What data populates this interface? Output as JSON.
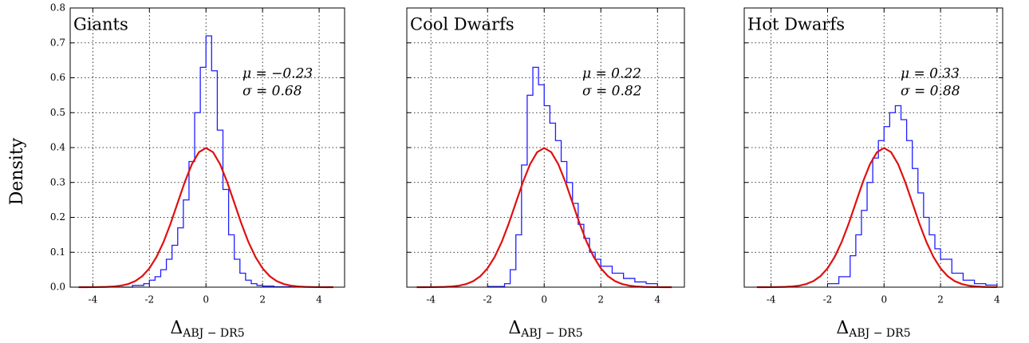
{
  "y_label": "Density",
  "chart_data": [
    {
      "type": "line",
      "title": "Giants",
      "annotations": [
        "μ = −0.23",
        "σ = 0.68"
      ],
      "x_label": {
        "symbol": "Δ",
        "subscript": "ABJ − DR5"
      },
      "xlim": [
        -4.8,
        4.9
      ],
      "xticks": [
        -4,
        -2,
        0,
        2,
        4
      ],
      "ylim": [
        0,
        0.8
      ],
      "yticks": [
        {
          "value": 0,
          "label": "0.0"
        },
        {
          "value": 0.1,
          "label": "0.1"
        },
        {
          "value": 0.2,
          "label": "0.2"
        },
        {
          "value": 0.3,
          "label": "0.3"
        },
        {
          "value": 0.4,
          "label": "0.4"
        },
        {
          "value": 0.5,
          "label": "0.5"
        },
        {
          "value": 0.6,
          "label": "0.6"
        },
        {
          "value": 0.7,
          "label": "0.7"
        },
        {
          "value": 0.8,
          "label": "0.8"
        }
      ],
      "show_ytick_labels": true,
      "grid": true,
      "series": [
        {
          "color": "#1f1fff",
          "step": true,
          "x": [
            -3,
            -2.6,
            -2.2,
            -2,
            -1.8,
            -1.6,
            -1.4,
            -1.2,
            -1,
            -0.8,
            -0.6,
            -0.4,
            -0.2,
            0,
            0.2,
            0.4,
            0.6,
            0.8,
            1,
            1.2,
            1.4,
            1.6,
            1.8,
            2,
            2.4,
            3
          ],
          "values": [
            0,
            0.005,
            0.01,
            0.02,
            0.03,
            0.05,
            0.08,
            0.12,
            0.17,
            0.25,
            0.36,
            0.5,
            0.63,
            0.72,
            0.62,
            0.45,
            0.28,
            0.15,
            0.08,
            0.04,
            0.02,
            0.01,
            0.005,
            0.003,
            0.001,
            0
          ]
        },
        {
          "color": "#e01010",
          "step": false,
          "x": [
            -4.5,
            -4.25,
            -4,
            -3.75,
            -3.5,
            -3.25,
            -3,
            -2.75,
            -2.5,
            -2.25,
            -2,
            -1.75,
            -1.5,
            -1.25,
            -1,
            -0.75,
            -0.5,
            -0.25,
            0,
            0.25,
            0.5,
            0.75,
            1,
            1.25,
            1.5,
            1.75,
            2,
            2.25,
            2.5,
            2.75,
            3,
            3.25,
            3.5,
            3.75,
            4,
            4.25,
            4.5
          ],
          "values": [
            2e-05,
            5e-05,
            0.0001,
            0.0004,
            0.0009,
            0.002,
            0.0044,
            0.0091,
            0.0175,
            0.0317,
            0.054,
            0.0863,
            0.1295,
            0.1826,
            0.242,
            0.3011,
            0.3521,
            0.3867,
            0.3989,
            0.3867,
            0.3521,
            0.3011,
            0.242,
            0.1826,
            0.1295,
            0.0863,
            0.054,
            0.0317,
            0.0175,
            0.0091,
            0.0044,
            0.002,
            0.0009,
            0.0004,
            0.0001,
            5e-05,
            2e-05
          ]
        }
      ]
    },
    {
      "type": "line",
      "title": "Cool Dwarfs",
      "annotations": [
        "μ = 0.22",
        "σ = 0.82"
      ],
      "x_label": {
        "symbol": "Δ",
        "subscript": "ABJ − DR5"
      },
      "xlim": [
        -4.85,
        4.95
      ],
      "xticks": [
        -4,
        -2,
        0,
        2,
        4
      ],
      "ylim": [
        0,
        0.8
      ],
      "yticks": [
        0,
        0.1,
        0.2,
        0.3,
        0.4,
        0.5,
        0.6,
        0.7,
        0.8
      ],
      "show_ytick_labels": false,
      "grid": true,
      "series": [
        {
          "color": "#1f1fff",
          "step": true,
          "x": [
            -2,
            -1.4,
            -1.2,
            -1,
            -0.8,
            -0.6,
            -0.4,
            -0.2,
            0,
            0.2,
            0.4,
            0.6,
            0.8,
            1,
            1.2,
            1.4,
            1.6,
            1.8,
            2,
            2.4,
            2.8,
            3.2,
            3.6,
            4
          ],
          "values": [
            0.002,
            0.01,
            0.05,
            0.15,
            0.35,
            0.55,
            0.63,
            0.58,
            0.52,
            0.47,
            0.42,
            0.36,
            0.3,
            0.24,
            0.18,
            0.14,
            0.1,
            0.08,
            0.06,
            0.04,
            0.025,
            0.015,
            0.01,
            0.008
          ]
        },
        {
          "color": "#e01010",
          "step": false,
          "x": [
            -4.5,
            -4.25,
            -4,
            -3.75,
            -3.5,
            -3.25,
            -3,
            -2.75,
            -2.5,
            -2.25,
            -2,
            -1.75,
            -1.5,
            -1.25,
            -1,
            -0.75,
            -0.5,
            -0.25,
            0,
            0.25,
            0.5,
            0.75,
            1,
            1.25,
            1.5,
            1.75,
            2,
            2.25,
            2.5,
            2.75,
            3,
            3.25,
            3.5,
            3.75,
            4,
            4.25,
            4.5
          ],
          "values": [
            2e-05,
            5e-05,
            0.0001,
            0.0004,
            0.0009,
            0.002,
            0.0044,
            0.0091,
            0.0175,
            0.0317,
            0.054,
            0.0863,
            0.1295,
            0.1826,
            0.242,
            0.3011,
            0.3521,
            0.3867,
            0.3989,
            0.3867,
            0.3521,
            0.3011,
            0.242,
            0.1826,
            0.1295,
            0.0863,
            0.054,
            0.0317,
            0.0175,
            0.0091,
            0.0044,
            0.002,
            0.0009,
            0.0004,
            0.0001,
            5e-05,
            2e-05
          ]
        }
      ]
    },
    {
      "type": "line",
      "title": "Hot Dwarfs",
      "annotations": [
        "μ = 0.33",
        "σ = 0.88"
      ],
      "x_label": {
        "symbol": "Δ",
        "subscript": "ABJ − DR5"
      },
      "xlim": [
        -4.95,
        4.2
      ],
      "xticks": [
        -4,
        -2,
        0,
        2,
        4
      ],
      "ylim": [
        0,
        0.8
      ],
      "yticks": [
        0,
        0.1,
        0.2,
        0.3,
        0.4,
        0.5,
        0.6,
        0.7,
        0.8
      ],
      "show_ytick_labels": false,
      "grid": true,
      "series": [
        {
          "color": "#1f1fff",
          "step": true,
          "x": [
            -2,
            -1.6,
            -1.2,
            -1,
            -0.8,
            -0.6,
            -0.4,
            -0.2,
            0,
            0.2,
            0.4,
            0.6,
            0.8,
            1,
            1.2,
            1.4,
            1.6,
            1.8,
            2,
            2.4,
            2.8,
            3.2,
            3.6,
            4
          ],
          "values": [
            0.01,
            0.03,
            0.09,
            0.15,
            0.22,
            0.3,
            0.37,
            0.42,
            0.46,
            0.5,
            0.52,
            0.48,
            0.42,
            0.34,
            0.27,
            0.2,
            0.15,
            0.11,
            0.08,
            0.04,
            0.02,
            0.01,
            0.006,
            0.003
          ]
        },
        {
          "color": "#e01010",
          "step": false,
          "x": [
            -4.5,
            -4.25,
            -4,
            -3.75,
            -3.5,
            -3.25,
            -3,
            -2.75,
            -2.5,
            -2.25,
            -2,
            -1.75,
            -1.5,
            -1.25,
            -1,
            -0.75,
            -0.5,
            -0.25,
            0,
            0.25,
            0.5,
            0.75,
            1,
            1.25,
            1.5,
            1.75,
            2,
            2.25,
            2.5,
            2.75,
            3,
            3.25,
            3.5,
            3.75,
            4
          ],
          "values": [
            2e-05,
            5e-05,
            0.0001,
            0.0004,
            0.0009,
            0.002,
            0.0044,
            0.0091,
            0.0175,
            0.0317,
            0.054,
            0.0863,
            0.1295,
            0.1826,
            0.242,
            0.3011,
            0.3521,
            0.3867,
            0.3989,
            0.3867,
            0.3521,
            0.3011,
            0.242,
            0.1826,
            0.1295,
            0.0863,
            0.054,
            0.0317,
            0.0175,
            0.0091,
            0.0044,
            0.002,
            0.0009,
            0.0004,
            0.0001
          ]
        }
      ]
    }
  ]
}
